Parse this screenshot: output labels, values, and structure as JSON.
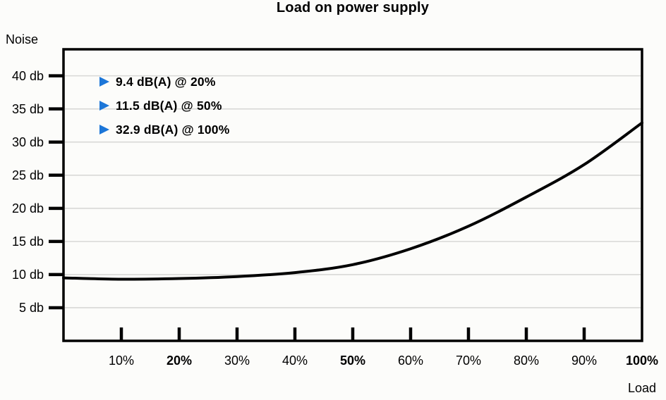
{
  "chart_data": {
    "type": "line",
    "title": "Load on power supply",
    "xlabel": "Load",
    "ylabel": "Noise",
    "x_unit": "%",
    "y_unit": "db",
    "xlim": [
      0,
      100
    ],
    "ylim": [
      0,
      44
    ],
    "grid": "horizontal",
    "legend_position": "none",
    "x": [
      0,
      10,
      20,
      30,
      40,
      50,
      60,
      70,
      80,
      90,
      100
    ],
    "values": [
      9.5,
      9.3,
      9.4,
      9.7,
      10.3,
      11.5,
      13.9,
      17.3,
      21.7,
      26.6,
      32.9
    ],
    "y_ticks": [
      {
        "value": 5,
        "label": "5 db"
      },
      {
        "value": 10,
        "label": "10 db"
      },
      {
        "value": 15,
        "label": "15 db"
      },
      {
        "value": 20,
        "label": "20 db"
      },
      {
        "value": 25,
        "label": "25 db"
      },
      {
        "value": 30,
        "label": "30 db"
      },
      {
        "value": 35,
        "label": "35 db"
      },
      {
        "value": 40,
        "label": "40 db"
      }
    ],
    "x_ticks": [
      {
        "value": 10,
        "label": "10%",
        "bold": false
      },
      {
        "value": 20,
        "label": "20%",
        "bold": true
      },
      {
        "value": 30,
        "label": "30%",
        "bold": false
      },
      {
        "value": 40,
        "label": "40%",
        "bold": false
      },
      {
        "value": 50,
        "label": "50%",
        "bold": true
      },
      {
        "value": 60,
        "label": "60%",
        "bold": false
      },
      {
        "value": 70,
        "label": "70%",
        "bold": false
      },
      {
        "value": 80,
        "label": "80%",
        "bold": false
      },
      {
        "value": 90,
        "label": "90%",
        "bold": false
      },
      {
        "value": 100,
        "label": "100%",
        "bold": true
      }
    ],
    "annotations": [
      {
        "label": "9.4 dB(A) @ 20%"
      },
      {
        "label": "11.5 dB(A) @ 50%"
      },
      {
        "label": "32.9 dB(A) @ 100%"
      }
    ]
  },
  "colors": {
    "accent_blue": "#1c76d8",
    "line": "#000000",
    "grid": "#d8d8d6",
    "background": "#fcfcfa",
    "text": "#000000"
  }
}
